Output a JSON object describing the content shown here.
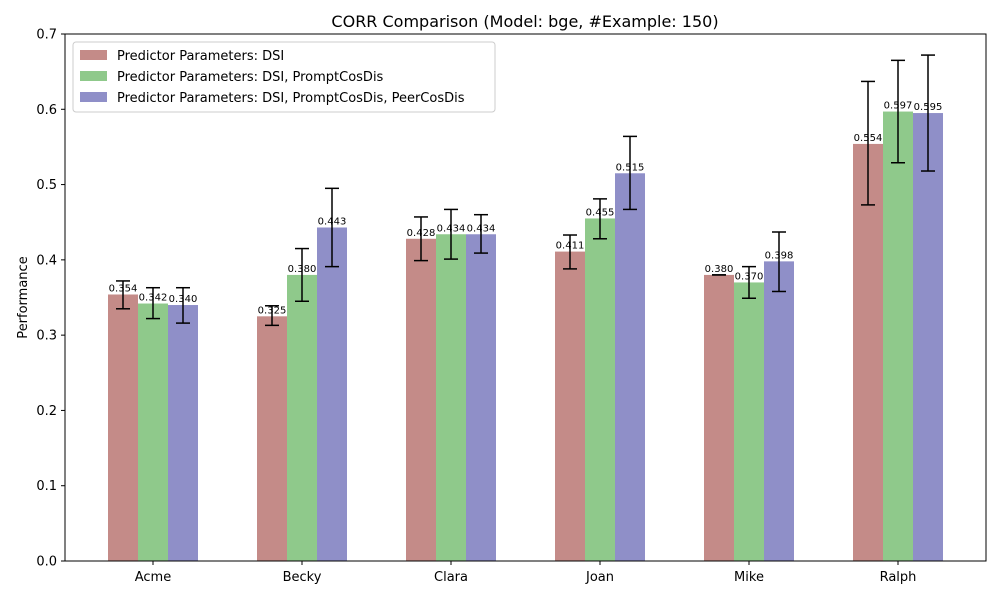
{
  "chart_data": {
    "type": "bar",
    "title": "CORR Comparison (Model: bge, #Example: 150)",
    "xlabel": "",
    "ylabel": "Performance",
    "ylim": [
      0,
      0.7
    ],
    "yticks": [
      "0.0",
      "0.1",
      "0.2",
      "0.3",
      "0.4",
      "0.5",
      "0.6",
      "0.7"
    ],
    "ytick_values": [
      0,
      0.1,
      0.2,
      0.3,
      0.4,
      0.5,
      0.6,
      0.7
    ],
    "grid": false,
    "legend_position": "top-left",
    "categories": [
      "Acme",
      "Becky",
      "Clara",
      "Joan",
      "Mike",
      "Ralph"
    ],
    "series": [
      {
        "name": "Predictor Parameters: DSI",
        "color": "#c48b88",
        "values": [
          0.354,
          0.325,
          0.428,
          0.411,
          0.38,
          0.554
        ],
        "labels": [
          "0.354",
          "0.325",
          "0.428",
          "0.411",
          "0.380",
          "0.554"
        ],
        "err_low": [
          0.335,
          0.313,
          0.399,
          0.388,
          0.38,
          0.473
        ],
        "err_high": [
          0.372,
          0.339,
          0.457,
          0.433,
          0.38,
          0.637
        ]
      },
      {
        "name": "Predictor Parameters: DSI, PromptCosDis",
        "color": "#8fc98b",
        "values": [
          0.342,
          0.38,
          0.434,
          0.455,
          0.37,
          0.597
        ],
        "labels": [
          "0.342",
          "0.380",
          "0.434",
          "0.455",
          "0.370",
          "0.597"
        ],
        "err_low": [
          0.322,
          0.345,
          0.401,
          0.428,
          0.349,
          0.529
        ],
        "err_high": [
          0.363,
          0.415,
          0.467,
          0.481,
          0.391,
          0.665
        ]
      },
      {
        "name": "Predictor Parameters: DSI, PromptCosDis, PeerCosDis",
        "color": "#8f8fc8",
        "values": [
          0.34,
          0.443,
          0.434,
          0.515,
          0.398,
          0.595
        ],
        "labels": [
          "0.340",
          "0.443",
          "0.434",
          "0.515",
          "0.398",
          "0.595"
        ],
        "err_low": [
          0.316,
          0.391,
          0.409,
          0.467,
          0.358,
          0.518
        ],
        "err_high": [
          0.363,
          0.495,
          0.46,
          0.564,
          0.437,
          0.672
        ]
      }
    ]
  }
}
